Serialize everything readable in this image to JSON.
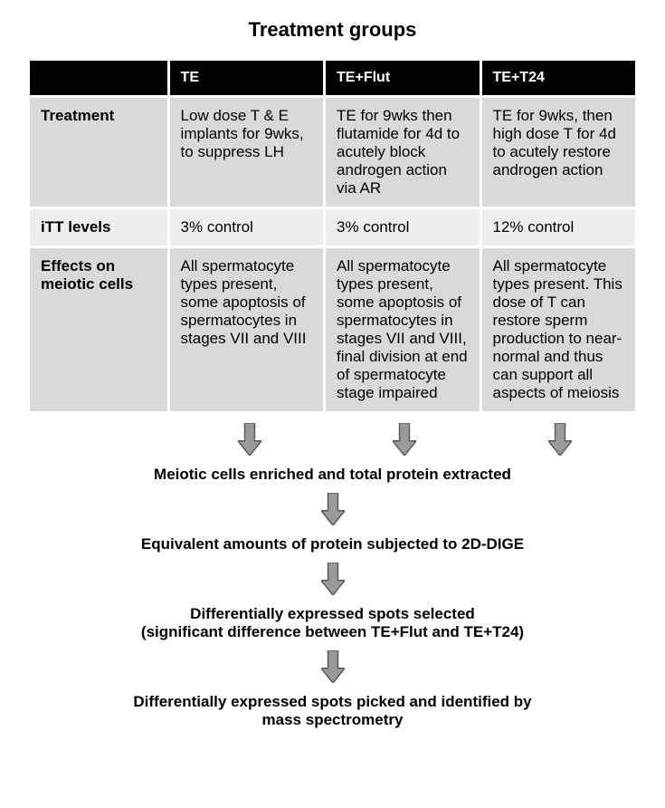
{
  "title": "Treatment groups",
  "title_fontsize": 22,
  "table": {
    "header_bg": "#000000",
    "header_fg": "#ffffff",
    "rowhead_bg": "#d9d9d9",
    "cell_bg_dark": "#d9d9d9",
    "cell_bg_light": "#eeeeee",
    "border_color": "#ffffff",
    "label_col_width_pct": 23,
    "font_size": 17,
    "columns": [
      "TE",
      "TE+Flut",
      "TE+T24"
    ],
    "rows": [
      {
        "label": "Treatment",
        "bg": "dark",
        "cells": [
          "Low dose T & E implants for 9wks, to suppress LH",
          "TE for 9wks then flutamide for 4d to acutely block androgen action via AR",
          "TE for 9wks, then high dose T for 4d to acutely restore androgen action"
        ]
      },
      {
        "label": "iTT levels",
        "bg": "light",
        "cells": [
          "3% control",
          "3% control",
          "12% control"
        ]
      },
      {
        "label": "Effects on meiotic cells",
        "bg": "dark",
        "cells": [
          "All spermatocyte types present, some apoptosis of spermatocytes in stages VII and VIII",
          "All spermatocyte types present, some apoptosis of spermatocytes in stages VII and VIII, final division at end of spermatocyte stage impaired",
          "All spermatocyte types present. This dose of T can restore sperm production to near-normal and thus can support all aspects of meiosis"
        ]
      }
    ]
  },
  "arrow": {
    "fill": "#9a9a9a",
    "stroke": "#5a5a5a",
    "width": 26,
    "height": 36
  },
  "steps": [
    "Meiotic cells enriched and total protein extracted",
    "Equivalent amounts of protein subjected to 2D-DIGE"
  ],
  "step3_line1": "Differentially expressed spots selected",
  "step3_line2": "(significant difference between TE+Flut and TE+T24)",
  "step4_line1": "Differentially expressed spots picked and identified by",
  "step4_line2": "mass spectrometry",
  "step_fontsize": 17
}
